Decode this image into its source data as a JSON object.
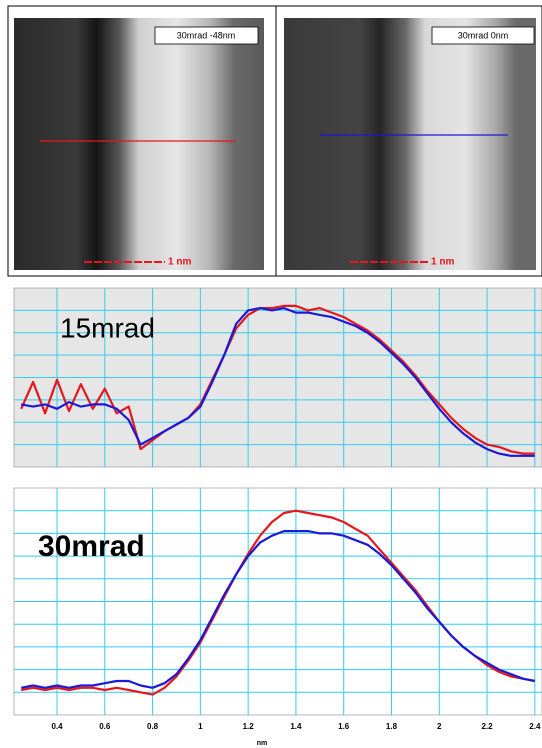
{
  "images": [
    {
      "label": "30mrad -48nm",
      "scale_label": "1 nm"
    },
    {
      "label": "30mrad 0nm",
      "scale_label": "1 nm"
    }
  ],
  "chart_data": [
    {
      "type": "line",
      "title": "15mrad",
      "background": "#e6e6e6",
      "grid": true,
      "grid_color": "#33ccee",
      "x": [
        0.25,
        0.3,
        0.35,
        0.4,
        0.45,
        0.5,
        0.55,
        0.6,
        0.65,
        0.7,
        0.75,
        0.8,
        0.85,
        0.9,
        0.95,
        1.0,
        1.05,
        1.1,
        1.15,
        1.2,
        1.25,
        1.3,
        1.35,
        1.4,
        1.45,
        1.5,
        1.55,
        1.6,
        1.65,
        1.7,
        1.75,
        1.8,
        1.85,
        1.9,
        1.95,
        2.0,
        2.05,
        2.1,
        2.15,
        2.2,
        2.25,
        2.3,
        2.35,
        2.4
      ],
      "series": [
        {
          "color": "#e8161b",
          "values": [
            2.6,
            3.8,
            2.4,
            3.9,
            2.5,
            3.7,
            2.6,
            3.5,
            2.4,
            2.7,
            0.8,
            1.2,
            1.6,
            1.9,
            2.2,
            2.8,
            3.9,
            5.0,
            6.2,
            6.8,
            7.1,
            7.1,
            7.2,
            7.2,
            7.0,
            7.1,
            6.9,
            6.7,
            6.4,
            6.1,
            5.7,
            5.2,
            4.7,
            4.1,
            3.4,
            2.8,
            2.2,
            1.7,
            1.3,
            1.0,
            0.9,
            0.7,
            0.6,
            0.6
          ]
        },
        {
          "color": "#1a1ad6",
          "values": [
            2.8,
            2.7,
            2.8,
            2.6,
            2.9,
            2.7,
            2.8,
            2.8,
            2.6,
            2.1,
            1.0,
            1.3,
            1.6,
            1.9,
            2.2,
            2.7,
            3.8,
            5.0,
            6.4,
            7.0,
            7.1,
            7.0,
            7.1,
            6.9,
            6.9,
            6.8,
            6.7,
            6.5,
            6.3,
            6.0,
            5.6,
            5.1,
            4.6,
            4.0,
            3.3,
            2.6,
            2.0,
            1.5,
            1.1,
            0.8,
            0.6,
            0.5,
            0.5,
            0.5
          ]
        }
      ],
      "xlim": [
        0.22,
        2.43
      ],
      "xticks": [
        0.4,
        0.6,
        0.8,
        1.0,
        1.2,
        1.4,
        1.6,
        1.8,
        2.0,
        2.2,
        2.4
      ],
      "ylim": [
        0,
        8
      ],
      "yticks": [
        1,
        2,
        3,
        4,
        5,
        6,
        7
      ]
    },
    {
      "type": "line",
      "title": "30mrad",
      "background": "#ffffff",
      "grid": true,
      "grid_color": "#33ccee",
      "xlabel": "nm",
      "x": [
        0.25,
        0.3,
        0.35,
        0.4,
        0.45,
        0.5,
        0.55,
        0.6,
        0.65,
        0.7,
        0.75,
        0.8,
        0.85,
        0.9,
        0.95,
        1.0,
        1.05,
        1.1,
        1.15,
        1.2,
        1.25,
        1.3,
        1.35,
        1.4,
        1.45,
        1.5,
        1.55,
        1.6,
        1.65,
        1.7,
        1.75,
        1.8,
        1.85,
        1.9,
        1.95,
        2.0,
        2.05,
        2.1,
        2.15,
        2.2,
        2.25,
        2.3,
        2.35,
        2.4
      ],
      "series": [
        {
          "color": "#e8161b",
          "values": [
            1.1,
            1.2,
            1.1,
            1.2,
            1.1,
            1.2,
            1.2,
            1.1,
            1.2,
            1.1,
            1.0,
            0.9,
            1.2,
            1.7,
            2.4,
            3.2,
            4.2,
            5.2,
            6.2,
            7.1,
            7.9,
            8.5,
            8.9,
            9.0,
            8.9,
            8.8,
            8.7,
            8.5,
            8.2,
            7.9,
            7.3,
            6.7,
            6.1,
            5.5,
            4.8,
            4.1,
            3.5,
            3.0,
            2.6,
            2.2,
            1.9,
            1.7,
            1.6,
            1.5
          ]
        },
        {
          "color": "#1a1ad6",
          "values": [
            1.2,
            1.3,
            1.2,
            1.3,
            1.2,
            1.3,
            1.3,
            1.4,
            1.5,
            1.5,
            1.3,
            1.2,
            1.4,
            1.8,
            2.5,
            3.3,
            4.3,
            5.3,
            6.2,
            7.0,
            7.6,
            7.9,
            8.1,
            8.1,
            8.1,
            8.0,
            8.0,
            7.9,
            7.7,
            7.5,
            7.1,
            6.6,
            6.0,
            5.4,
            4.7,
            4.1,
            3.5,
            3.0,
            2.6,
            2.3,
            2.0,
            1.8,
            1.6,
            1.5
          ]
        }
      ],
      "xlim": [
        0.22,
        2.43
      ],
      "xticks": [
        0.4,
        0.6,
        0.8,
        1.0,
        1.2,
        1.4,
        1.6,
        1.8,
        2.0,
        2.2,
        2.4
      ],
      "ylim": [
        0,
        10
      ],
      "yticks": [
        1,
        2,
        3,
        4,
        5,
        6,
        7,
        8,
        9
      ]
    }
  ]
}
